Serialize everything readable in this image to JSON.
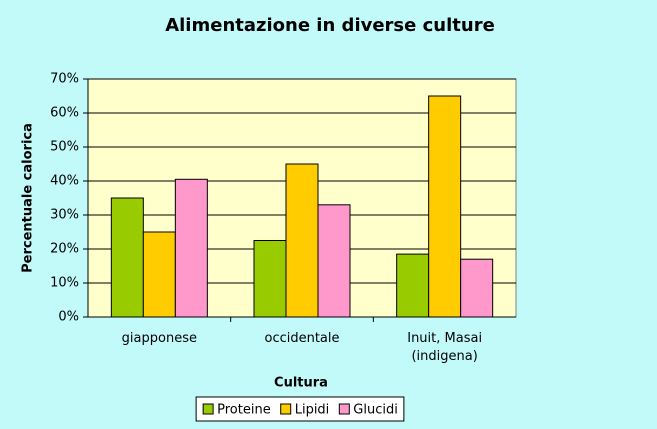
{
  "chart_data": {
    "type": "bar",
    "title": "Alimentazione in diverse culture",
    "x_label": "Cultura",
    "y_label": "Percentuale calorica",
    "categories": [
      "giapponese",
      "occidentale",
      "Inuit, Masai (indigena)"
    ],
    "series": [
      {
        "name": "Proteine",
        "color": "#99cc00",
        "values": [
          35,
          22.5,
          18.5
        ]
      },
      {
        "name": "Lipidi",
        "color": "#ffcc00",
        "values": [
          25,
          45,
          65
        ]
      },
      {
        "name": "Glucidi",
        "color": "#ff99cc",
        "values": [
          40.5,
          33,
          17
        ]
      }
    ],
    "ylim": [
      0,
      70
    ],
    "yticks": [
      {
        "value": 0,
        "label": "0%"
      },
      {
        "value": 10,
        "label": "10%"
      },
      {
        "value": 20,
        "label": "20%"
      },
      {
        "value": 30,
        "label": "30%"
      },
      {
        "value": 40,
        "label": "40%"
      },
      {
        "value": 50,
        "label": "50%"
      },
      {
        "value": 60,
        "label": "60%"
      },
      {
        "value": 70,
        "label": "70%"
      }
    ],
    "grid": true,
    "legend": "bottom"
  }
}
